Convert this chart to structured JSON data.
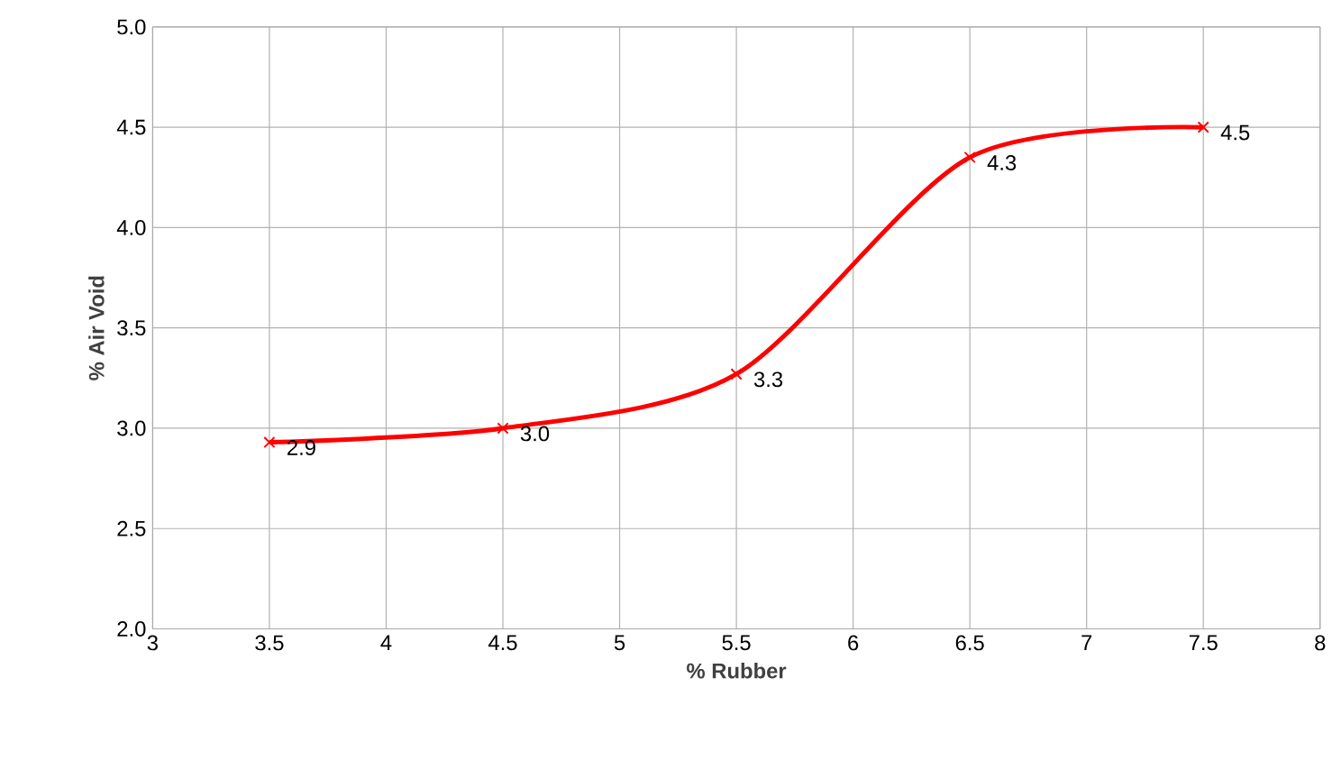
{
  "chart_data": {
    "type": "line",
    "xlabel": "% Rubber",
    "ylabel": "% Air Void",
    "x": [
      3.5,
      4.5,
      5.5,
      6.5,
      7.5
    ],
    "series": [
      {
        "color": "#ff0000",
        "values": [
          2.93,
          3.0,
          3.27,
          4.35,
          4.5
        ],
        "value_labels": [
          "2.9",
          "3.0",
          "3.3",
          "4.3",
          "4.5"
        ]
      }
    ],
    "xlim": [
      3,
      8
    ],
    "xticks": [
      3,
      3.5,
      4,
      4.5,
      5,
      5.5,
      6,
      6.5,
      7,
      7.5,
      8
    ],
    "ylim": [
      2,
      5
    ],
    "yticks": [
      {
        "value": 2,
        "label": "2.0"
      },
      {
        "value": 2.5,
        "label": "2.5"
      },
      {
        "value": 3,
        "label": "3.0"
      },
      {
        "value": 3.5,
        "label": "3.5"
      },
      {
        "value": 4,
        "label": "4.0"
      },
      {
        "value": 4.5,
        "label": "4.5"
      },
      {
        "value": 5,
        "label": "5.0"
      }
    ],
    "grid": true,
    "marker": "cross",
    "line_style": "solid"
  }
}
